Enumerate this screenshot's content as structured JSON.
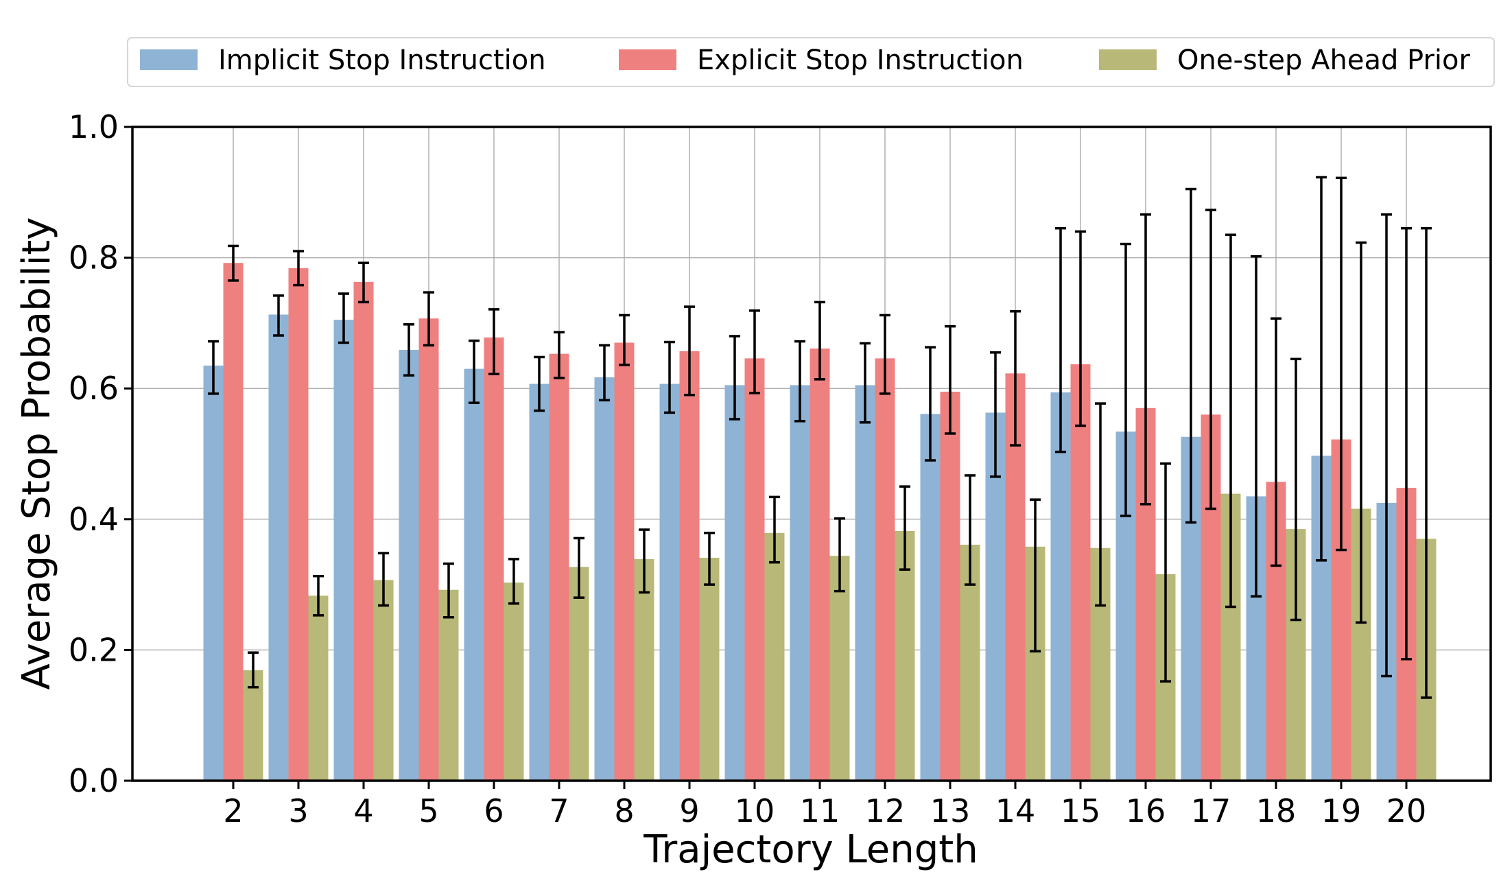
{
  "chart_data": {
    "type": "bar",
    "xlabel": "Trajectory Length",
    "ylabel": "Average Stop Probability",
    "ylim": [
      0,
      1.0
    ],
    "yticks": [
      "0.0",
      "0.2",
      "0.4",
      "0.6",
      "0.8",
      "1.0"
    ],
    "grid": true,
    "legend_position": "top",
    "categories": [
      "2",
      "3",
      "4",
      "5",
      "6",
      "7",
      "8",
      "9",
      "10",
      "11",
      "12",
      "13",
      "14",
      "15",
      "16",
      "17",
      "18",
      "19",
      "20"
    ],
    "series": [
      {
        "name": "Implicit Stop Instruction",
        "color": "#8fb3d5",
        "values": [
          0.635,
          0.713,
          0.705,
          0.659,
          0.63,
          0.607,
          0.617,
          0.607,
          0.605,
          0.605,
          0.605,
          0.561,
          0.563,
          0.594,
          0.534,
          0.526,
          0.435,
          0.497,
          0.425
        ],
        "err_low": [
          0.592,
          0.681,
          0.67,
          0.62,
          0.578,
          0.566,
          0.582,
          0.563,
          0.553,
          0.55,
          0.548,
          0.49,
          0.465,
          0.503,
          0.405,
          0.395,
          0.282,
          0.337,
          0.16
        ],
        "err_high": [
          0.672,
          0.742,
          0.745,
          0.698,
          0.673,
          0.648,
          0.666,
          0.671,
          0.68,
          0.672,
          0.669,
          0.663,
          0.655,
          0.845,
          0.821,
          0.905,
          0.802,
          0.923,
          0.866
        ]
      },
      {
        "name": "Explicit Stop Instruction",
        "color": "#ef8080",
        "values": [
          0.792,
          0.784,
          0.763,
          0.707,
          0.678,
          0.653,
          0.67,
          0.657,
          0.646,
          0.661,
          0.646,
          0.595,
          0.623,
          0.637,
          0.57,
          0.56,
          0.457,
          0.522,
          0.448
        ],
        "err_low": [
          0.765,
          0.758,
          0.732,
          0.666,
          0.622,
          0.616,
          0.636,
          0.59,
          0.593,
          0.614,
          0.592,
          0.531,
          0.513,
          0.543,
          0.423,
          0.416,
          0.329,
          0.353,
          0.186
        ],
        "err_high": [
          0.818,
          0.81,
          0.792,
          0.747,
          0.721,
          0.686,
          0.712,
          0.725,
          0.719,
          0.732,
          0.712,
          0.695,
          0.718,
          0.84,
          0.866,
          0.873,
          0.707,
          0.922,
          0.845
        ]
      },
      {
        "name": "One-step Ahead Prior",
        "color": "#b8b878",
        "values": [
          0.169,
          0.283,
          0.307,
          0.292,
          0.303,
          0.327,
          0.339,
          0.341,
          0.379,
          0.344,
          0.382,
          0.361,
          0.358,
          0.356,
          0.316,
          0.439,
          0.385,
          0.416,
          0.37
        ],
        "err_low": [
          0.143,
          0.253,
          0.268,
          0.25,
          0.271,
          0.28,
          0.288,
          0.3,
          0.334,
          0.29,
          0.323,
          0.3,
          0.198,
          0.268,
          0.152,
          0.266,
          0.246,
          0.242,
          0.127
        ],
        "err_high": [
          0.196,
          0.313,
          0.348,
          0.332,
          0.339,
          0.371,
          0.384,
          0.379,
          0.434,
          0.401,
          0.45,
          0.467,
          0.43,
          0.577,
          0.485,
          0.835,
          0.645,
          0.823,
          0.845
        ]
      }
    ]
  }
}
